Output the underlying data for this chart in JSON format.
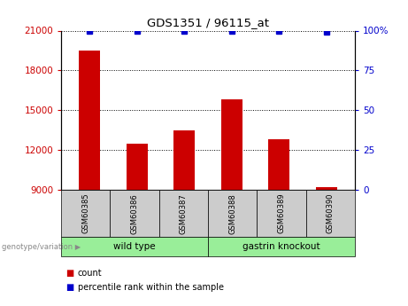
{
  "title": "GDS1351 / 96115_at",
  "samples": [
    "GSM60385",
    "GSM60386",
    "GSM60387",
    "GSM60388",
    "GSM60389",
    "GSM60390"
  ],
  "counts": [
    19500,
    12500,
    13500,
    15800,
    12800,
    9200
  ],
  "percentile_ranks": [
    100,
    100,
    100,
    100,
    100,
    99
  ],
  "baseline": 9000,
  "ylim_left": [
    9000,
    21000
  ],
  "ylim_right": [
    0,
    100
  ],
  "yticks_left": [
    9000,
    12000,
    15000,
    18000,
    21000
  ],
  "yticks_right": [
    0,
    25,
    50,
    75,
    100
  ],
  "yticklabels_right": [
    "0",
    "25",
    "50",
    "75",
    "100%"
  ],
  "bar_color": "#cc0000",
  "dot_color": "#0000cc",
  "sample_box_color": "#cccccc",
  "group_color": "#99ee99",
  "groups_info": [
    [
      0,
      2,
      "wild type"
    ],
    [
      3,
      5,
      "gastrin knockout"
    ]
  ],
  "background_color": "#ffffff"
}
